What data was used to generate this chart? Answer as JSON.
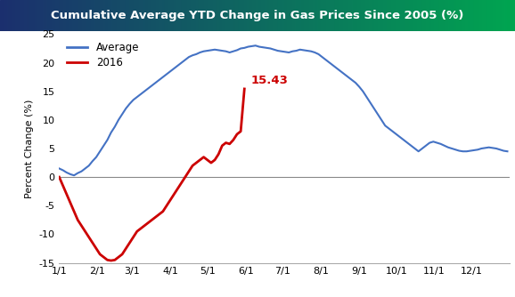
{
  "title": "Cumulative Average YTD Change in Gas Prices Since 2005 (%)",
  "title_bg_left": "#1b2f6e",
  "title_bg_right": "#00a550",
  "title_color": "#ffffff",
  "ylabel": "Percent Change (%)",
  "ylim": [
    -15,
    25
  ],
  "yticks": [
    -15,
    -10,
    -5,
    0,
    5,
    10,
    15,
    20,
    25
  ],
  "xtick_labels": [
    "1/1",
    "2/1",
    "3/1",
    "4/1",
    "5/1",
    "6/1",
    "7/1",
    "8/1",
    "9/1",
    "10/1",
    "11/1",
    "12/1"
  ],
  "avg_color": "#4472c4",
  "line2016_color": "#cc0000",
  "annotation_text": "15.43",
  "annotation_color": "#cc0000",
  "bg_color": "#ffffff",
  "plot_bg_color": "#ffffff",
  "avg_x": [
    0,
    3,
    6,
    9,
    12,
    15,
    18,
    21,
    24,
    27,
    30,
    33,
    36,
    39,
    42,
    45,
    48,
    51,
    54,
    57,
    60,
    63,
    66,
    69,
    72,
    75,
    78,
    81,
    84,
    87,
    90,
    93,
    96,
    99,
    102,
    105,
    108,
    111,
    114,
    117,
    120,
    123,
    126,
    129,
    132,
    135,
    138,
    141,
    144,
    147,
    150,
    153,
    156,
    159,
    162,
    165,
    168,
    171,
    174,
    177,
    180,
    183,
    186,
    189,
    192,
    195,
    198,
    201,
    204,
    207,
    210,
    213,
    216,
    219,
    222,
    225,
    228,
    231,
    234,
    237,
    240,
    243,
    246,
    249,
    252,
    255,
    258,
    261,
    264,
    267,
    270,
    273,
    276,
    279,
    282,
    285,
    288,
    291,
    294,
    297,
    300,
    303,
    306,
    309,
    312,
    315,
    318,
    321,
    324,
    327,
    330,
    333,
    336,
    339,
    342,
    345,
    348,
    351,
    354,
    357,
    360,
    363
  ],
  "avg_y": [
    1.5,
    1.2,
    0.8,
    0.5,
    0.3,
    0.7,
    1.0,
    1.5,
    2.0,
    2.8,
    3.5,
    4.5,
    5.5,
    6.5,
    7.8,
    8.8,
    10.0,
    11.0,
    12.0,
    12.8,
    13.5,
    14.0,
    14.5,
    15.0,
    15.5,
    16.0,
    16.5,
    17.0,
    17.5,
    18.0,
    18.5,
    19.0,
    19.5,
    20.0,
    20.5,
    21.0,
    21.3,
    21.5,
    21.8,
    22.0,
    22.1,
    22.2,
    22.3,
    22.2,
    22.1,
    22.0,
    21.8,
    22.0,
    22.2,
    22.5,
    22.6,
    22.8,
    22.9,
    23.0,
    22.8,
    22.7,
    22.6,
    22.5,
    22.3,
    22.1,
    22.0,
    21.9,
    21.8,
    22.0,
    22.1,
    22.3,
    22.2,
    22.1,
    22.0,
    21.8,
    21.5,
    21.0,
    20.5,
    20.0,
    19.5,
    19.0,
    18.5,
    18.0,
    17.5,
    17.0,
    16.5,
    15.8,
    15.0,
    14.0,
    13.0,
    12.0,
    11.0,
    10.0,
    9.0,
    8.5,
    8.0,
    7.5,
    7.0,
    6.5,
    6.0,
    5.5,
    5.0,
    4.5,
    5.0,
    5.5,
    6.0,
    6.2,
    6.0,
    5.8,
    5.5,
    5.2,
    5.0,
    4.8,
    4.6,
    4.5,
    4.5,
    4.6,
    4.7,
    4.8,
    5.0,
    5.1,
    5.2,
    5.1,
    5.0,
    4.8,
    4.6,
    4.5
  ],
  "line2016_x": [
    0,
    3,
    6,
    9,
    12,
    15,
    18,
    21,
    24,
    27,
    30,
    33,
    36,
    39,
    42,
    45,
    48,
    51,
    54,
    57,
    60,
    63,
    66,
    69,
    72,
    75,
    78,
    81,
    84,
    87,
    90,
    93,
    96,
    99,
    102,
    105,
    108,
    111,
    114,
    117,
    120,
    123,
    126,
    129,
    132,
    135,
    138,
    141,
    144,
    147,
    150
  ],
  "line2016_y": [
    0.0,
    -1.5,
    -3.0,
    -4.5,
    -6.0,
    -7.5,
    -8.5,
    -9.5,
    -10.5,
    -11.5,
    -12.5,
    -13.5,
    -14.0,
    -14.5,
    -14.6,
    -14.5,
    -14.0,
    -13.5,
    -12.5,
    -11.5,
    -10.5,
    -9.5,
    -9.0,
    -8.5,
    -8.0,
    -7.5,
    -7.0,
    -6.5,
    -6.0,
    -5.0,
    -4.0,
    -3.0,
    -2.0,
    -1.0,
    0.0,
    1.0,
    2.0,
    2.5,
    3.0,
    3.5,
    3.0,
    2.5,
    3.0,
    4.0,
    5.5,
    6.0,
    5.8,
    6.5,
    7.5,
    8.0,
    15.43
  ],
  "month_positions": [
    0,
    31,
    59,
    90,
    120,
    151,
    181,
    212,
    243,
    273,
    304,
    334
  ]
}
